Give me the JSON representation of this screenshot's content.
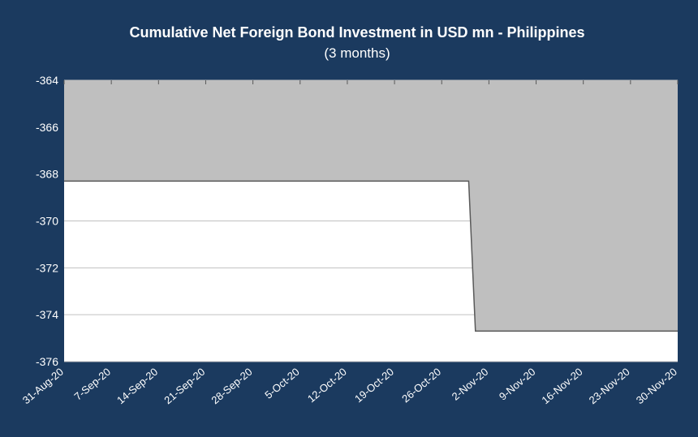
{
  "colors": {
    "background": "#1b3a5f",
    "plot_background": "#ffffff",
    "area_fill": "#bfbfbf",
    "line": "#595959",
    "gridline": "#c0c0c0",
    "text": "#ffffff"
  },
  "chart_data": {
    "type": "area",
    "title": "Cumulative Net Foreign Bond Investment in USD mn -  Philippines",
    "subtitle": "(3 months)",
    "xlabel": "",
    "ylabel": "",
    "ylim": [
      -376,
      -364
    ],
    "yticks": [
      -364,
      -366,
      -368,
      -370,
      -372,
      -374,
      -376
    ],
    "ytick_labels": [
      "-364",
      "-366",
      "-368",
      "-370",
      "-372",
      "-374",
      "-376"
    ],
    "xticks": [
      "2020-08-31",
      "2020-09-07",
      "2020-09-14",
      "2020-09-21",
      "2020-09-28",
      "2020-10-05",
      "2020-10-12",
      "2020-10-19",
      "2020-10-26",
      "2020-11-02",
      "2020-11-09",
      "2020-11-16",
      "2020-11-23",
      "2020-11-30"
    ],
    "xtick_labels": [
      "31-Aug-20",
      "7-Sep-20",
      "14-Sep-20",
      "21-Sep-20",
      "28-Sep-20",
      "5-Oct-20",
      "12-Oct-20",
      "19-Oct-20",
      "26-Oct-20",
      "2-Nov-20",
      "9-Nov-20",
      "16-Nov-20",
      "23-Nov-20",
      "30-Nov-20"
    ],
    "grid": true,
    "legend": false,
    "series": [
      {
        "x": [
          "2020-08-31",
          "2020-10-30",
          "2020-10-31",
          "2020-11-30"
        ],
        "values": [
          -368.3,
          -368.3,
          -374.7,
          -374.7
        ]
      }
    ]
  }
}
